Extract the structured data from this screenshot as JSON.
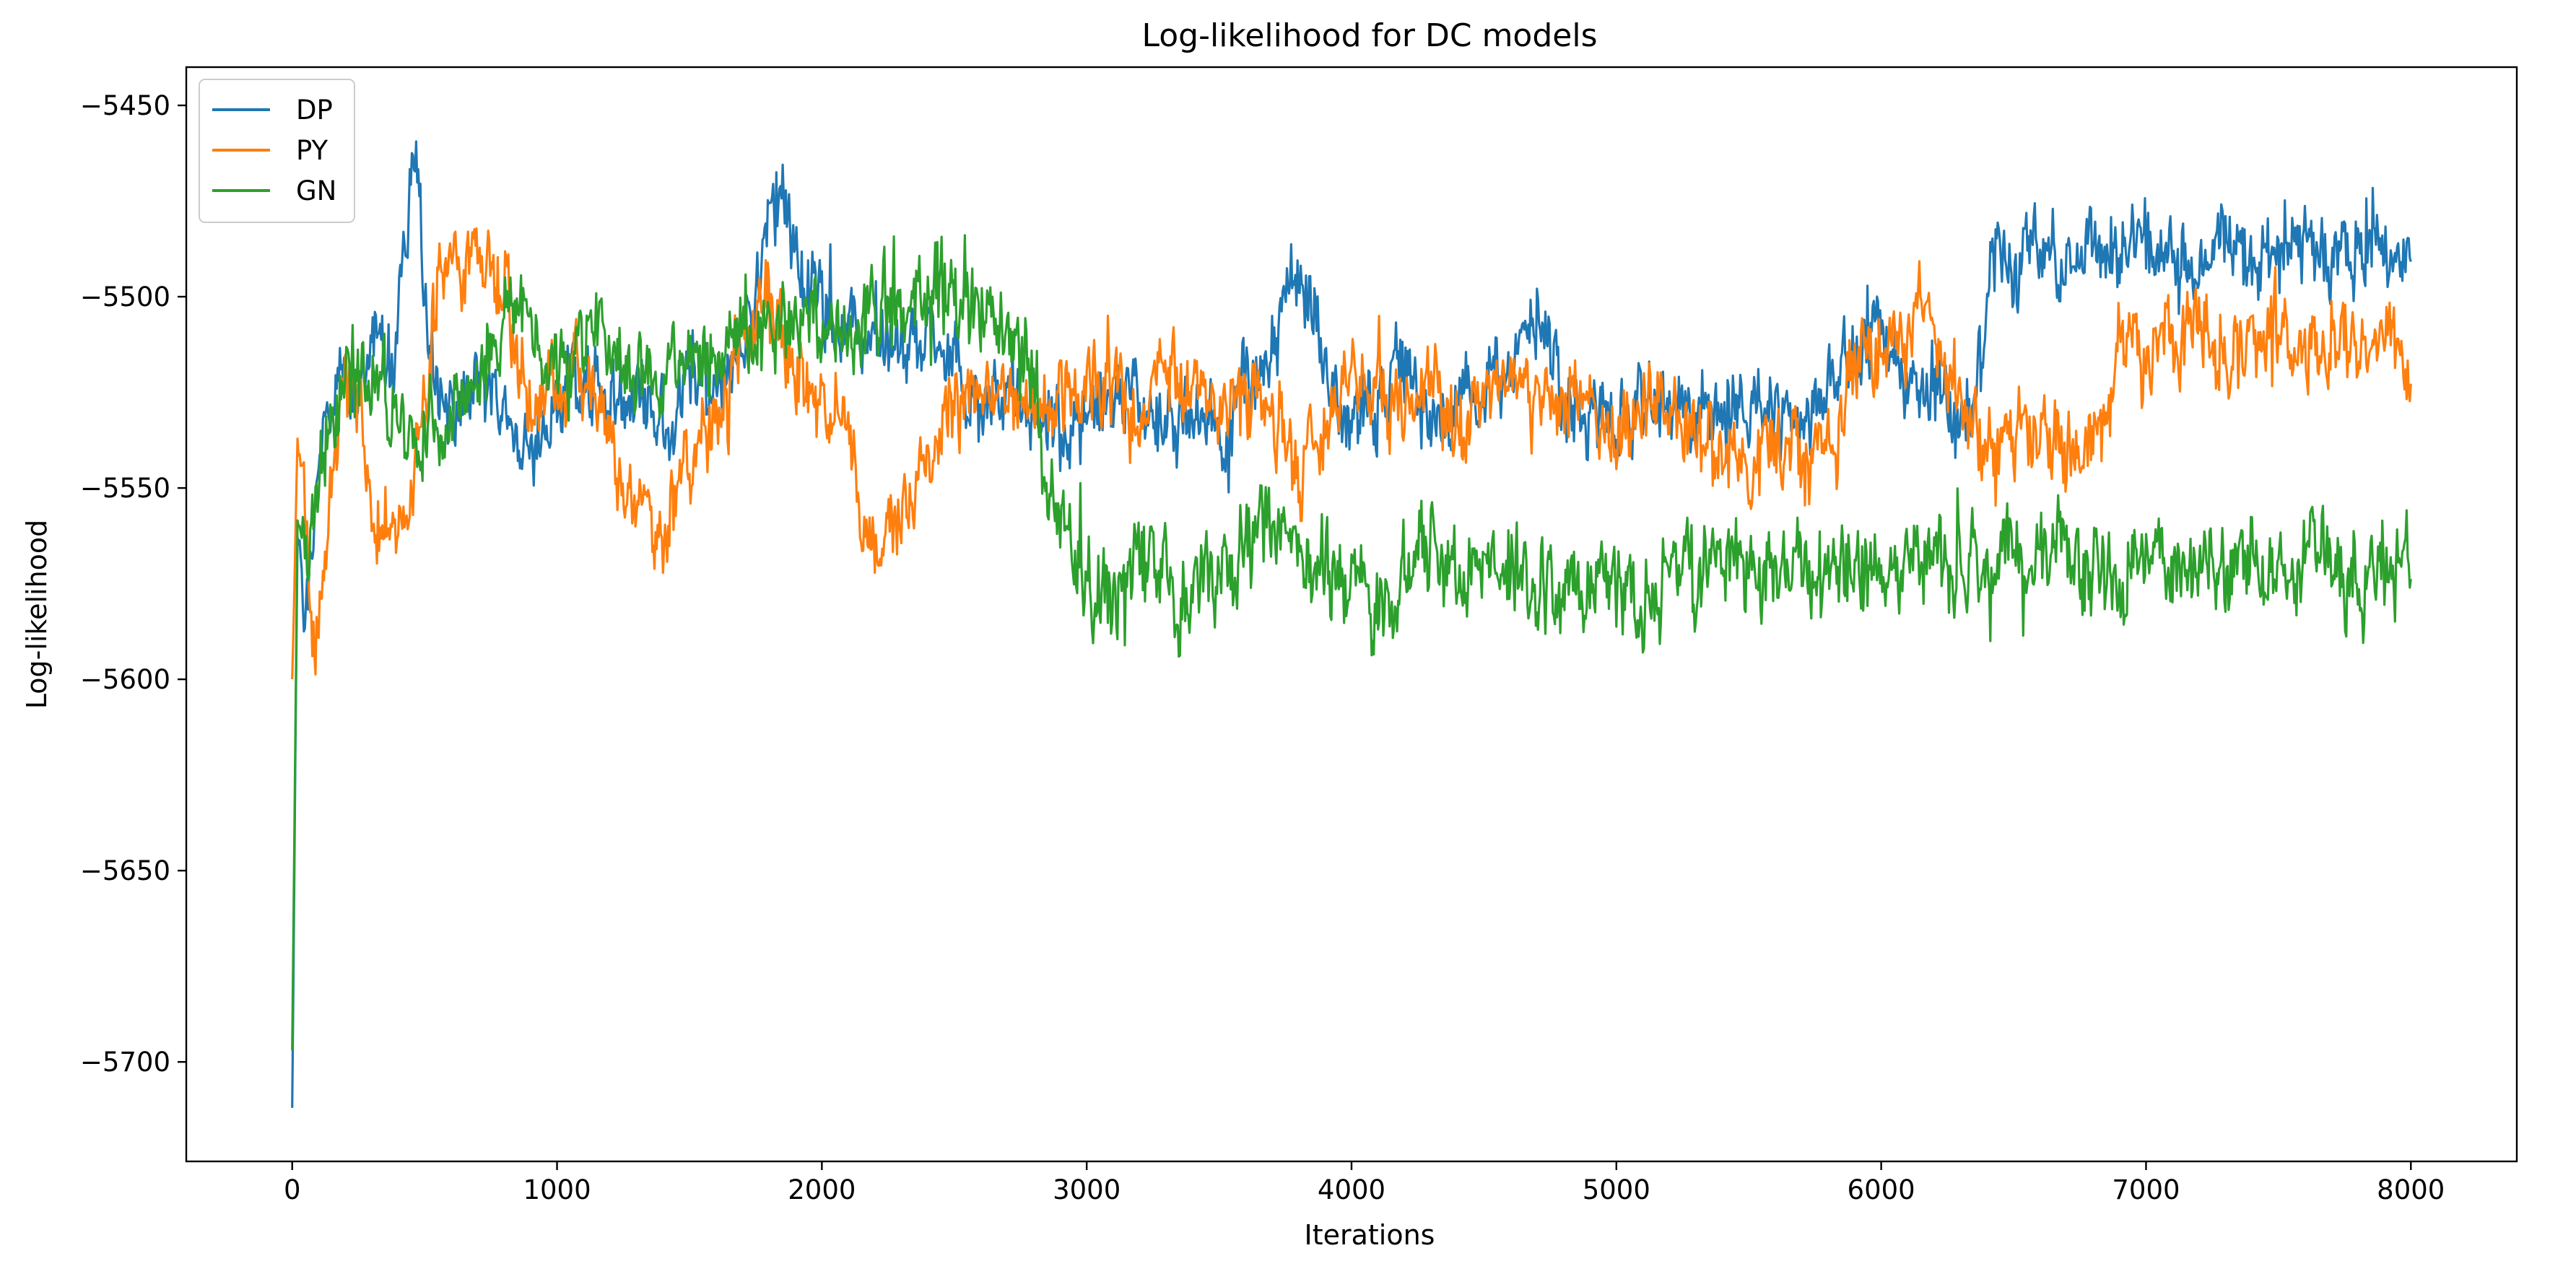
{
  "chart_data": {
    "type": "line",
    "title": "Log-likelihood for DC models",
    "xlabel": "Iterations",
    "ylabel": "Log-likelihood",
    "xlim": [
      -400,
      8400
    ],
    "ylim": [
      -5726,
      -5440
    ],
    "xticks": [
      0,
      1000,
      2000,
      3000,
      4000,
      5000,
      6000,
      7000,
      8000
    ],
    "xtick_labels": [
      "0",
      "1000",
      "2000",
      "3000",
      "4000",
      "5000",
      "6000",
      "7000",
      "8000"
    ],
    "yticks": [
      -5450,
      -5500,
      -5550,
      -5600,
      -5650,
      -5700
    ],
    "ytick_labels": [
      "−5450",
      "−5500",
      "−5550",
      "−5600",
      "−5650",
      "−5700"
    ],
    "grid": false,
    "legend_position": "upper-left",
    "series": [
      {
        "name": "DP",
        "color": "#1f77b4",
        "noise": 9,
        "x": [
          0,
          20,
          60,
          100,
          150,
          200,
          260,
          320,
          380,
          420,
          450,
          470,
          500,
          540,
          600,
          700,
          800,
          900,
          1000,
          1100,
          1200,
          1300,
          1400,
          1500,
          1600,
          1700,
          1800,
          1850,
          1900,
          1950,
          2000,
          2100,
          2200,
          2300,
          2400,
          2500,
          2600,
          2700,
          2800,
          2900,
          3000,
          3100,
          3200,
          3300,
          3400,
          3500,
          3600,
          3700,
          3750,
          3800,
          3850,
          3900,
          3950,
          4000,
          4100,
          4200,
          4300,
          4400,
          4500,
          4600,
          4650,
          4700,
          4750,
          4800,
          4900,
          5000,
          5100,
          5200,
          5300,
          5400,
          5500,
          5600,
          5700,
          5800,
          5900,
          6000,
          6100,
          6200,
          6300,
          6380,
          6400,
          6500,
          6600,
          6700,
          6800,
          6900,
          7000,
          7100,
          7200,
          7300,
          7400,
          7500,
          7600,
          7700,
          7800,
          7900,
          8000
        ],
        "y": [
          -5712,
          -5560,
          -5585,
          -5545,
          -5530,
          -5520,
          -5525,
          -5510,
          -5520,
          -5490,
          -5470,
          -5465,
          -5500,
          -5525,
          -5530,
          -5520,
          -5530,
          -5540,
          -5530,
          -5520,
          -5530,
          -5525,
          -5530,
          -5520,
          -5525,
          -5515,
          -5480,
          -5470,
          -5490,
          -5500,
          -5505,
          -5510,
          -5515,
          -5510,
          -5505,
          -5520,
          -5530,
          -5525,
          -5530,
          -5535,
          -5530,
          -5530,
          -5525,
          -5535,
          -5530,
          -5530,
          -5525,
          -5520,
          -5500,
          -5492,
          -5500,
          -5520,
          -5530,
          -5535,
          -5525,
          -5520,
          -5530,
          -5530,
          -5525,
          -5520,
          -5505,
          -5505,
          -5515,
          -5530,
          -5530,
          -5535,
          -5525,
          -5530,
          -5530,
          -5535,
          -5525,
          -5530,
          -5535,
          -5525,
          -5515,
          -5510,
          -5520,
          -5525,
          -5535,
          -5520,
          -5488,
          -5488,
          -5488,
          -5490,
          -5485,
          -5490,
          -5485,
          -5490,
          -5488,
          -5485,
          -5490,
          -5488,
          -5485,
          -5490,
          -5485,
          -5486,
          -5488
        ]
      },
      {
        "name": "PY",
        "color": "#ff7f0e",
        "noise": 9,
        "x": [
          0,
          20,
          60,
          80,
          100,
          150,
          200,
          260,
          300,
          400,
          500,
          550,
          600,
          650,
          700,
          750,
          800,
          850,
          900,
          1000,
          1100,
          1200,
          1300,
          1400,
          1500,
          1600,
          1700,
          1800,
          1900,
          2000,
          2100,
          2150,
          2200,
          2300,
          2400,
          2500,
          2600,
          2700,
          2800,
          2900,
          3000,
          3100,
          3200,
          3300,
          3400,
          3500,
          3600,
          3700,
          3800,
          3900,
          4000,
          4100,
          4200,
          4300,
          4400,
          4500,
          4600,
          4700,
          4800,
          4900,
          5000,
          5100,
          5200,
          5300,
          5400,
          5500,
          5600,
          5700,
          5800,
          5900,
          6000,
          6100,
          6150,
          6200,
          6300,
          6400,
          6500,
          6600,
          6700,
          6800,
          6880,
          6900,
          7000,
          7100,
          7200,
          7300,
          7400,
          7500,
          7600,
          7700,
          7800,
          7900,
          8000
        ],
        "y": [
          -5600,
          -5540,
          -5560,
          -5590,
          -5580,
          -5550,
          -5520,
          -5530,
          -5555,
          -5560,
          -5540,
          -5495,
          -5490,
          -5495,
          -5490,
          -5500,
          -5495,
          -5520,
          -5530,
          -5520,
          -5520,
          -5540,
          -5550,
          -5560,
          -5545,
          -5530,
          -5510,
          -5500,
          -5520,
          -5530,
          -5535,
          -5560,
          -5565,
          -5555,
          -5540,
          -5530,
          -5520,
          -5525,
          -5530,
          -5525,
          -5520,
          -5525,
          -5530,
          -5520,
          -5525,
          -5530,
          -5525,
          -5530,
          -5545,
          -5535,
          -5520,
          -5525,
          -5530,
          -5525,
          -5535,
          -5530,
          -5525,
          -5530,
          -5525,
          -5530,
          -5535,
          -5525,
          -5530,
          -5535,
          -5540,
          -5545,
          -5540,
          -5545,
          -5535,
          -5520,
          -5510,
          -5510,
          -5495,
          -5520,
          -5525,
          -5540,
          -5540,
          -5535,
          -5540,
          -5535,
          -5530,
          -5515,
          -5515,
          -5510,
          -5510,
          -5515,
          -5515,
          -5510,
          -5515,
          -5512,
          -5512,
          -5510,
          -5515
        ]
      },
      {
        "name": "GN",
        "color": "#2ca02c",
        "noise": 10,
        "x": [
          0,
          20,
          60,
          100,
          150,
          200,
          300,
          400,
          500,
          600,
          700,
          800,
          850,
          900,
          1000,
          1100,
          1200,
          1300,
          1400,
          1500,
          1600,
          1700,
          1800,
          1900,
          2000,
          2100,
          2200,
          2300,
          2400,
          2500,
          2600,
          2700,
          2800,
          2850,
          2900,
          3000,
          3100,
          3200,
          3300,
          3400,
          3500,
          3600,
          3700,
          3800,
          3900,
          4000,
          4100,
          4200,
          4300,
          4400,
          4500,
          4600,
          4700,
          4800,
          4900,
          5000,
          5100,
          5200,
          5300,
          5400,
          5500,
          5600,
          5700,
          5800,
          5900,
          6000,
          6100,
          6200,
          6300,
          6400,
          6500,
          6600,
          6700,
          6800,
          6900,
          7000,
          7100,
          7200,
          7300,
          7400,
          7500,
          7600,
          7700,
          7800,
          7900,
          8000
        ],
        "y": [
          -5697,
          -5560,
          -5570,
          -5550,
          -5535,
          -5525,
          -5520,
          -5530,
          -5540,
          -5530,
          -5520,
          -5510,
          -5505,
          -5510,
          -5520,
          -5510,
          -5515,
          -5520,
          -5525,
          -5520,
          -5515,
          -5510,
          -5505,
          -5505,
          -5510,
          -5510,
          -5505,
          -5500,
          -5495,
          -5500,
          -5505,
          -5510,
          -5520,
          -5550,
          -5560,
          -5575,
          -5580,
          -5570,
          -5575,
          -5580,
          -5575,
          -5565,
          -5560,
          -5565,
          -5570,
          -5575,
          -5580,
          -5570,
          -5565,
          -5575,
          -5570,
          -5570,
          -5575,
          -5580,
          -5575,
          -5575,
          -5580,
          -5570,
          -5575,
          -5565,
          -5570,
          -5575,
          -5570,
          -5575,
          -5570,
          -5575,
          -5570,
          -5565,
          -5570,
          -5575,
          -5565,
          -5570,
          -5565,
          -5570,
          -5575,
          -5565,
          -5570,
          -5570,
          -5575,
          -5570,
          -5575,
          -5570,
          -5570,
          -5575,
          -5570,
          -5570
        ]
      }
    ]
  }
}
